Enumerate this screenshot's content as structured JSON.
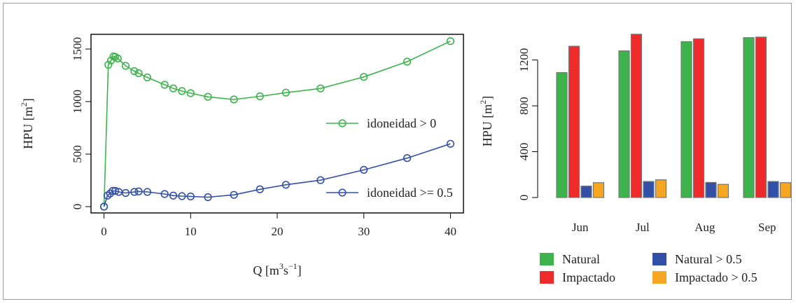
{
  "chart_data": [
    {
      "type": "line",
      "xlabel": "Q [m3s-1]",
      "xlabel_parts": {
        "base": "Q [m",
        "sup1": "3",
        "mid": "s",
        "sup2": "−1",
        "end": "]"
      },
      "ylabel_parts": {
        "base": "HPU [m",
        "sup": "2",
        "end": "]"
      },
      "xlim": [
        -1.5,
        41.5
      ],
      "ylim": [
        -60,
        1640
      ],
      "x_ticks": [
        0,
        10,
        20,
        30,
        40
      ],
      "y_ticks": [
        0,
        500,
        1000,
        1500
      ],
      "legend_position": "right",
      "series": [
        {
          "name": "idoneidad > 0",
          "color": "#3cb44b",
          "points": [
            [
              0,
              0
            ],
            [
              0.5,
              1350
            ],
            [
              0.8,
              1390
            ],
            [
              1.1,
              1430
            ],
            [
              1.3,
              1425
            ],
            [
              1.6,
              1410
            ],
            [
              2.5,
              1340
            ],
            [
              3.5,
              1290
            ],
            [
              4.0,
              1270
            ],
            [
              5.0,
              1230
            ],
            [
              7.0,
              1160
            ],
            [
              8.0,
              1125
            ],
            [
              9.0,
              1100
            ],
            [
              10.0,
              1080
            ],
            [
              12.0,
              1045
            ],
            [
              15.0,
              1020
            ],
            [
              18.0,
              1050
            ],
            [
              21.0,
              1085
            ],
            [
              25.0,
              1125
            ],
            [
              30.0,
              1235
            ],
            [
              35.0,
              1380
            ],
            [
              40.0,
              1575
            ]
          ]
        },
        {
          "name": "idoneidad >= 0.5",
          "color": "#3350a8",
          "points": [
            [
              0,
              0
            ],
            [
              0.4,
              105
            ],
            [
              0.7,
              125
            ],
            [
              1.0,
              150
            ],
            [
              1.3,
              150
            ],
            [
              1.7,
              140
            ],
            [
              2.5,
              130
            ],
            [
              3.5,
              140
            ],
            [
              4.0,
              145
            ],
            [
              5.0,
              140
            ],
            [
              7.0,
              120
            ],
            [
              8.0,
              105
            ],
            [
              9.0,
              100
            ],
            [
              10.0,
              97
            ],
            [
              12.0,
              90
            ],
            [
              15.0,
              112
            ],
            [
              18.0,
              165
            ],
            [
              21.0,
              208
            ],
            [
              25.0,
              252
            ],
            [
              30.0,
              350
            ],
            [
              35.0,
              462
            ],
            [
              40.0,
              598
            ]
          ]
        }
      ]
    },
    {
      "type": "bar",
      "ylabel_parts": {
        "base": "HPU [m",
        "sup": "2",
        "end": "]"
      },
      "categories": [
        "Jun",
        "Jul",
        "Aug",
        "Sep"
      ],
      "ylim": [
        0,
        1430
      ],
      "y_ticks": [
        0,
        400,
        800,
        1200
      ],
      "legend_position": "bottom",
      "series": [
        {
          "name": "Natural",
          "color": "#3cb44b",
          "values": [
            1090,
            1280,
            1360,
            1395
          ]
        },
        {
          "name": "Impactado",
          "color": "#ee2a2a",
          "values": [
            1320,
            1425,
            1385,
            1400
          ]
        },
        {
          "name": "Natural > 0.5",
          "color": "#3350a8",
          "values": [
            100,
            140,
            132,
            140
          ]
        },
        {
          "name": "Impactado > 0.5",
          "color": "#f5a623",
          "values": [
            130,
            155,
            115,
            130
          ]
        }
      ]
    }
  ]
}
